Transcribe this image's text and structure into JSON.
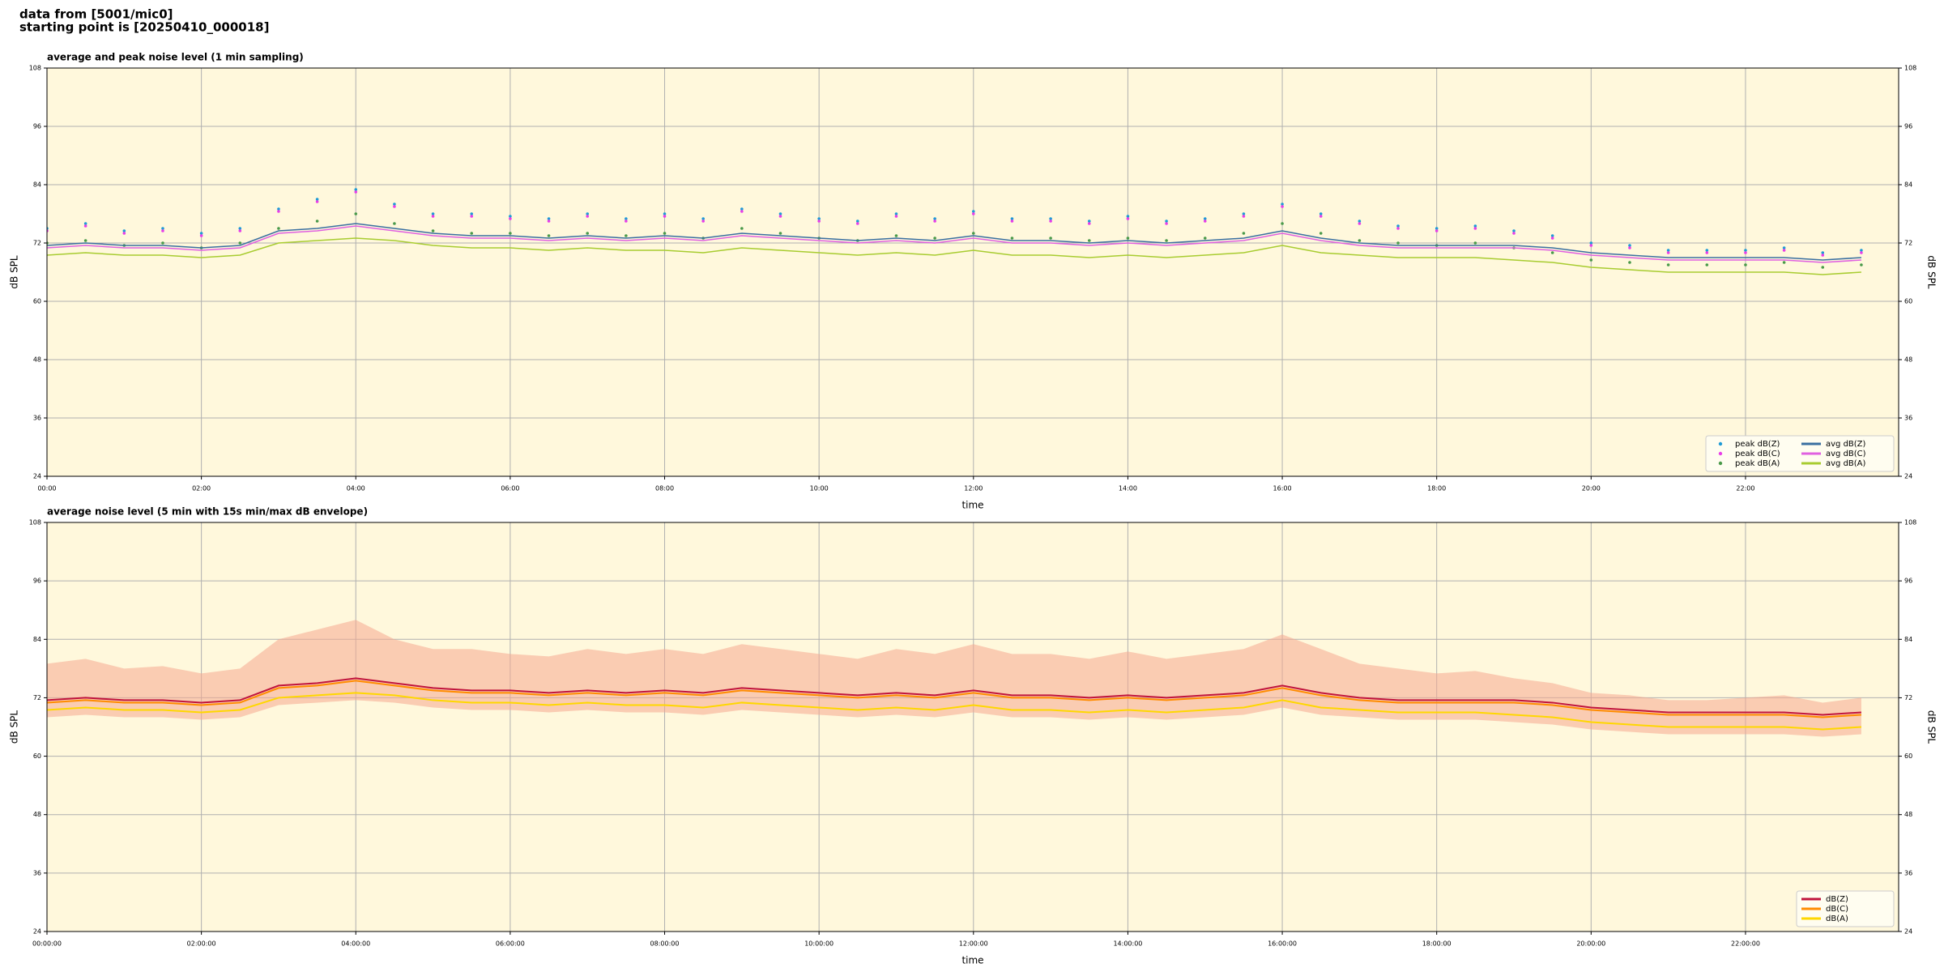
{
  "header": {
    "lines": [
      "data from [5001/mic0]",
      "starting point is [20250410_000018]"
    ]
  },
  "chart_data": [
    {
      "type": "line",
      "title": "average and peak noise level (1 min sampling)",
      "xlabel": "time",
      "ylabel": "dB SPL",
      "xlim": [
        0,
        1439
      ],
      "ylim": [
        24,
        108
      ],
      "yticks": [
        24,
        36,
        48,
        60,
        72,
        84,
        96,
        108
      ],
      "xticks": [
        {
          "value": 0,
          "label": "00:00"
        },
        {
          "value": 120,
          "label": "02:00"
        },
        {
          "value": 240,
          "label": "04:00"
        },
        {
          "value": 360,
          "label": "06:00"
        },
        {
          "value": 480,
          "label": "08:00"
        },
        {
          "value": 600,
          "label": "10:00"
        },
        {
          "value": 720,
          "label": "12:00"
        },
        {
          "value": 840,
          "label": "14:00"
        },
        {
          "value": 960,
          "label": "16:00"
        },
        {
          "value": 1080,
          "label": "18:00"
        },
        {
          "value": 1200,
          "label": "20:00"
        },
        {
          "value": 1320,
          "label": "22:00"
        }
      ],
      "grid": true,
      "legend": "lower right",
      "background": "#fff8dc",
      "x": [
        0,
        30,
        60,
        90,
        120,
        150,
        180,
        210,
        240,
        270,
        300,
        330,
        360,
        390,
        420,
        450,
        480,
        510,
        540,
        570,
        600,
        630,
        660,
        690,
        720,
        750,
        780,
        810,
        840,
        870,
        900,
        930,
        960,
        990,
        1020,
        1050,
        1080,
        1110,
        1140,
        1170,
        1200,
        1230,
        1260,
        1290,
        1320,
        1350,
        1380,
        1410
      ],
      "series": [
        {
          "name": "peak dB(Z)",
          "type": "scatter",
          "color": "#1f9bd6",
          "values": [
            75,
            76,
            74.5,
            75,
            74,
            75,
            79,
            81,
            83,
            80,
            78,
            78,
            77.5,
            77,
            78,
            77,
            78,
            77,
            79,
            78,
            77,
            76.5,
            78,
            77,
            78.5,
            77,
            77,
            76.5,
            77.5,
            76.5,
            77,
            78,
            80,
            78,
            76.5,
            75.5,
            75,
            75.5,
            74.5,
            73.5,
            72,
            71.5,
            70.5,
            70.5,
            70.5,
            71,
            70,
            70.5
          ]
        },
        {
          "name": "peak dB(C)",
          "type": "scatter",
          "color": "#e83ee8",
          "values": [
            74.5,
            75.5,
            74,
            74.5,
            73.5,
            74.5,
            78.5,
            80.5,
            82.5,
            79.5,
            77.5,
            77.5,
            77,
            76.5,
            77.5,
            76.5,
            77.5,
            76.5,
            78.5,
            77.5,
            76.5,
            76,
            77.5,
            76.5,
            78,
            76.5,
            76.5,
            76,
            77,
            76,
            76.5,
            77.5,
            79.5,
            77.5,
            76,
            75,
            74.5,
            75,
            74,
            73,
            71.5,
            71,
            70,
            70,
            70,
            70.5,
            69.5,
            70
          ]
        },
        {
          "name": "peak dB(A)",
          "type": "scatter",
          "color": "#4a9a4a",
          "values": [
            72,
            72.5,
            71.5,
            72,
            71,
            72,
            75,
            76.5,
            78,
            76,
            74.5,
            74,
            74,
            73.5,
            74,
            73.5,
            74,
            73,
            75,
            74,
            73,
            72.5,
            73.5,
            73,
            74,
            73,
            73,
            72.5,
            73,
            72.5,
            73,
            74,
            76,
            74,
            72.5,
            72,
            71.5,
            72,
            71,
            70,
            68.5,
            68,
            67.5,
            67.5,
            67.5,
            68,
            67,
            67.5
          ]
        },
        {
          "name": "avg dB(Z)",
          "type": "line",
          "color": "#3a6fa0",
          "values": [
            71.5,
            72,
            71.5,
            71.5,
            71,
            71.5,
            74.5,
            75,
            76,
            75,
            74,
            73.5,
            73.5,
            73,
            73.5,
            73,
            73.5,
            73,
            74,
            73.5,
            73,
            72.5,
            73,
            72.5,
            73.5,
            72.5,
            72.5,
            72,
            72.5,
            72,
            72.5,
            73,
            74.5,
            73,
            72,
            71.5,
            71.5,
            71.5,
            71.5,
            71,
            70,
            69.5,
            69,
            69,
            69,
            69,
            68.5,
            69
          ]
        },
        {
          "name": "avg dB(C)",
          "type": "line",
          "color": "#e060e0",
          "values": [
            71,
            71.5,
            71,
            71,
            70.5,
            71,
            74,
            74.5,
            75.5,
            74.5,
            73.5,
            73,
            73,
            72.5,
            73,
            72.5,
            73,
            72.5,
            73.5,
            73,
            72.5,
            72,
            72.5,
            72,
            73,
            72,
            72,
            71.5,
            72,
            71.5,
            72,
            72.5,
            74,
            72.5,
            71.5,
            71,
            71,
            71,
            71,
            70.5,
            69.5,
            69,
            68.5,
            68.5,
            68.5,
            68.5,
            68,
            68.5
          ]
        },
        {
          "name": "avg dB(A)",
          "type": "line",
          "color": "#a8cc30",
          "values": [
            69.5,
            70,
            69.5,
            69.5,
            69,
            69.5,
            72,
            72.5,
            73,
            72.5,
            71.5,
            71,
            71,
            70.5,
            71,
            70.5,
            70.5,
            70,
            71,
            70.5,
            70,
            69.5,
            70,
            69.5,
            70.5,
            69.5,
            69.5,
            69,
            69.5,
            69,
            69.5,
            70,
            71.5,
            70,
            69.5,
            69,
            69,
            69,
            68.5,
            68,
            67,
            66.5,
            66,
            66,
            66,
            66,
            65.5,
            66
          ]
        }
      ]
    },
    {
      "type": "line",
      "title": "average noise level (5 min with 15s min/max dB envelope)",
      "xlabel": "time",
      "ylabel": "dB SPL",
      "xlim": [
        0,
        1439
      ],
      "ylim": [
        24,
        108
      ],
      "yticks": [
        24,
        36,
        48,
        60,
        72,
        84,
        96,
        108
      ],
      "xticks": [
        {
          "value": 0,
          "label": "00:00:00"
        },
        {
          "value": 120,
          "label": "02:00:00"
        },
        {
          "value": 240,
          "label": "04:00:00"
        },
        {
          "value": 360,
          "label": "06:00:00"
        },
        {
          "value": 480,
          "label": "08:00:00"
        },
        {
          "value": 600,
          "label": "10:00:00"
        },
        {
          "value": 720,
          "label": "12:00:00"
        },
        {
          "value": 840,
          "label": "14:00:00"
        },
        {
          "value": 960,
          "label": "16:00:00"
        },
        {
          "value": 1080,
          "label": "18:00:00"
        },
        {
          "value": 1200,
          "label": "20:00:00"
        },
        {
          "value": 1320,
          "label": "22:00:00"
        }
      ],
      "grid": true,
      "legend": "lower right",
      "background": "#fff8dc",
      "x": [
        0,
        30,
        60,
        90,
        120,
        150,
        180,
        210,
        240,
        270,
        300,
        330,
        360,
        390,
        420,
        450,
        480,
        510,
        540,
        570,
        600,
        630,
        660,
        690,
        720,
        750,
        780,
        810,
        840,
        870,
        900,
        930,
        960,
        990,
        1020,
        1050,
        1080,
        1110,
        1140,
        1170,
        1200,
        1230,
        1260,
        1290,
        1320,
        1350,
        1380,
        1410
      ],
      "envelope": {
        "color": "#f5a890",
        "lower": [
          68,
          68.5,
          68,
          68,
          67.5,
          68,
          70.5,
          71,
          71.5,
          71,
          70,
          69.5,
          69.5,
          69,
          69.5,
          69,
          69,
          68.5,
          69.5,
          69,
          68.5,
          68,
          68.5,
          68,
          69,
          68,
          68,
          67.5,
          68,
          67.5,
          68,
          68.5,
          70,
          68.5,
          68,
          67.5,
          67.5,
          67.5,
          67,
          66.5,
          65.5,
          65,
          64.5,
          64.5,
          64.5,
          64.5,
          64,
          64.5
        ],
        "upper": [
          79,
          80,
          78,
          78.5,
          77,
          78,
          84,
          86,
          88,
          84,
          82,
          82,
          81,
          80.5,
          82,
          81,
          82,
          81,
          83,
          82,
          81,
          80,
          82,
          81,
          83,
          81,
          81,
          80,
          81.5,
          80,
          81,
          82,
          85,
          82,
          79,
          78,
          77,
          77.5,
          76,
          75,
          73,
          72.5,
          71.5,
          71.5,
          72,
          72.5,
          71,
          72
        ]
      },
      "series": [
        {
          "name": "dB(Z)",
          "type": "line",
          "color": "#c0143c",
          "values": [
            71.5,
            72,
            71.5,
            71.5,
            71,
            71.5,
            74.5,
            75,
            76,
            75,
            74,
            73.5,
            73.5,
            73,
            73.5,
            73,
            73.5,
            73,
            74,
            73.5,
            73,
            72.5,
            73,
            72.5,
            73.5,
            72.5,
            72.5,
            72,
            72.5,
            72,
            72.5,
            73,
            74.5,
            73,
            72,
            71.5,
            71.5,
            71.5,
            71.5,
            71,
            70,
            69.5,
            69,
            69,
            69,
            69,
            68.5,
            69
          ]
        },
        {
          "name": "dB(C)",
          "type": "line",
          "color": "#ff8c00",
          "values": [
            71,
            71.5,
            71,
            71,
            70.5,
            71,
            74,
            74.5,
            75.5,
            74.5,
            73.5,
            73,
            73,
            72.5,
            73,
            72.5,
            73,
            72.5,
            73.5,
            73,
            72.5,
            72,
            72.5,
            72,
            73,
            72,
            72,
            71.5,
            72,
            71.5,
            72,
            72.5,
            74,
            72.5,
            71.5,
            71,
            71,
            71,
            71,
            70.5,
            69.5,
            69,
            68.5,
            68.5,
            68.5,
            68.5,
            68,
            68.5
          ]
        },
        {
          "name": "dB(A)",
          "type": "line",
          "color": "#ffd700",
          "values": [
            69.5,
            70,
            69.5,
            69.5,
            69,
            69.5,
            72,
            72.5,
            73,
            72.5,
            71.5,
            71,
            71,
            70.5,
            71,
            70.5,
            70.5,
            70,
            71,
            70.5,
            70,
            69.5,
            70,
            69.5,
            70.5,
            69.5,
            69.5,
            69,
            69.5,
            69,
            69.5,
            70,
            71.5,
            70,
            69.5,
            69,
            69,
            69,
            68.5,
            68,
            67,
            66.5,
            66,
            66,
            66,
            66,
            65.5,
            66
          ]
        }
      ]
    }
  ]
}
